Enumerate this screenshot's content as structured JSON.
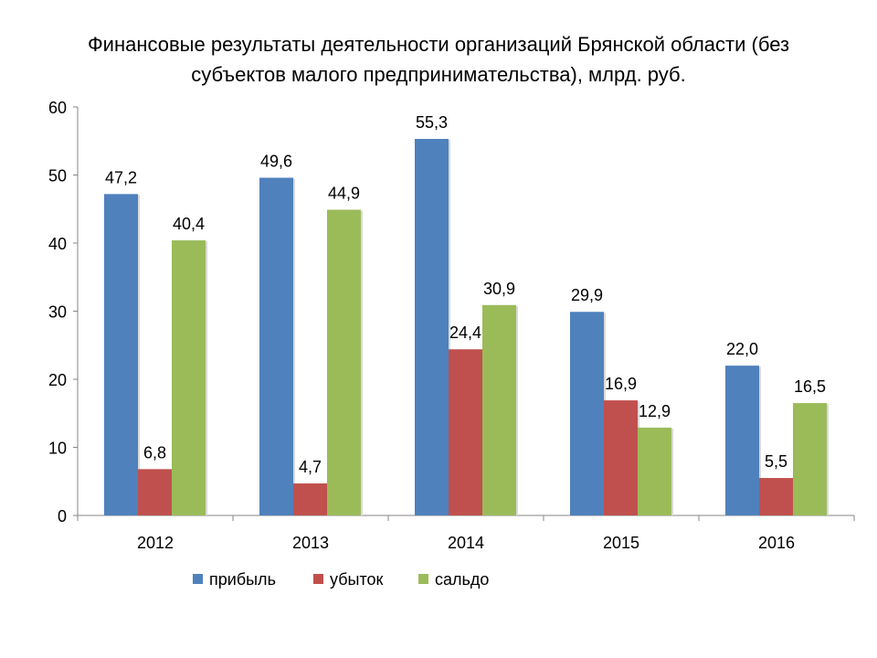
{
  "chart_data": {
    "type": "bar",
    "title_lines": [
      "Финансовые результаты деятельности организаций Брянской области  (без",
      "субъектов малого предпринимательства), млрд. руб."
    ],
    "categories": [
      "2012",
      "2013",
      "2014",
      "2015",
      "2016"
    ],
    "series": [
      {
        "name": "прибыль",
        "color": "#4F81BD",
        "values": [
          47.2,
          49.6,
          55.3,
          29.9,
          22.0
        ],
        "labels": [
          "47,2",
          "49,6",
          "55,3",
          "29,9",
          "22,0"
        ]
      },
      {
        "name": "убыток",
        "color": "#C0504D",
        "values": [
          6.8,
          4.7,
          24.4,
          16.9,
          5.5
        ],
        "labels": [
          "6,8",
          "4,7",
          "24,4",
          "16,9",
          "5,5"
        ]
      },
      {
        "name": "сальдо",
        "color": "#9BBB59",
        "values": [
          40.4,
          44.9,
          30.9,
          12.9,
          16.5
        ],
        "labels": [
          "40,4",
          "44,9",
          "30,9",
          "12,9",
          "16,5"
        ]
      }
    ],
    "ylim": [
      0,
      60
    ],
    "yticks": [
      "0",
      "10",
      "20",
      "30",
      "40",
      "50",
      "60"
    ],
    "xlabel": "",
    "ylabel": "",
    "grid": false,
    "legend": "bottom"
  }
}
